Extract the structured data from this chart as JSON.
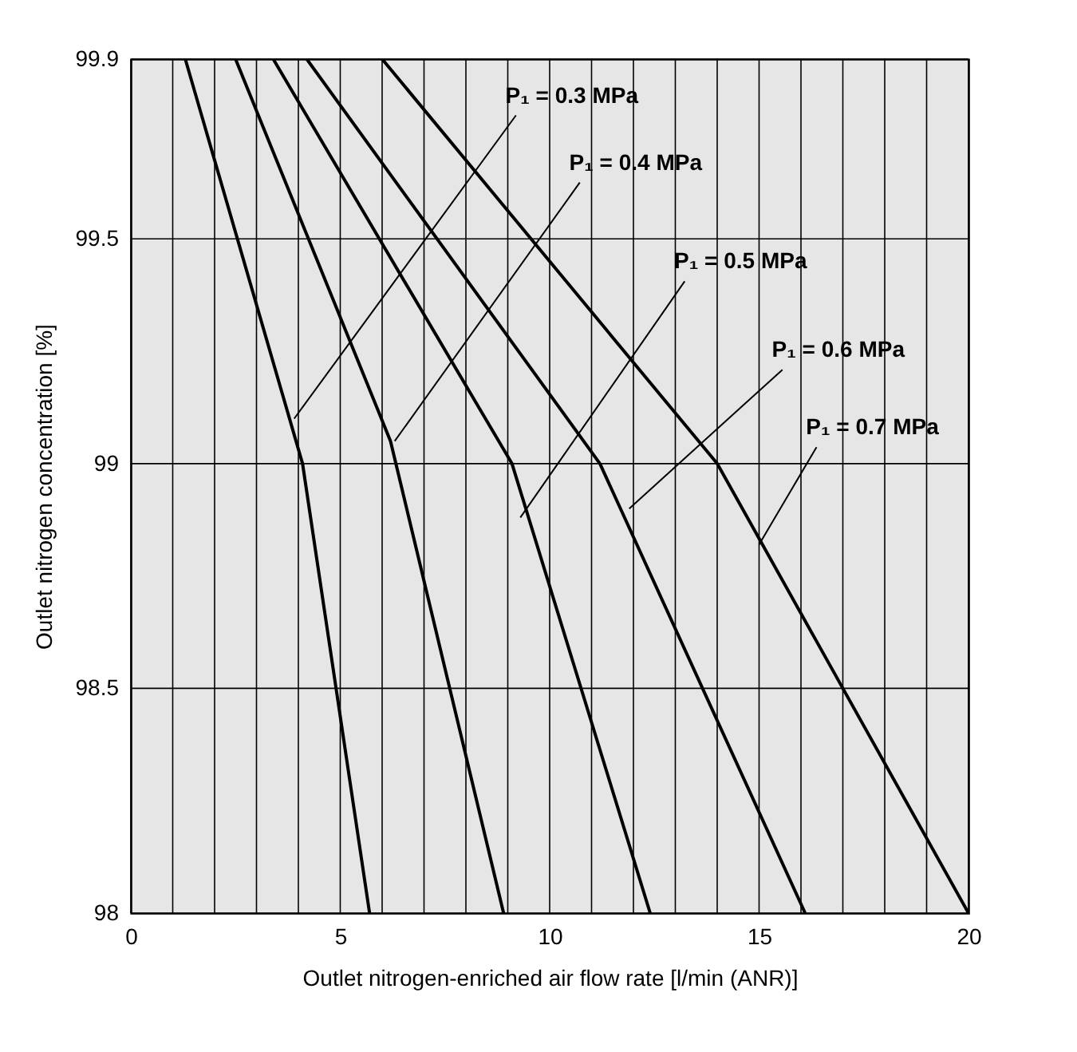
{
  "chart_data": {
    "type": "line",
    "xlabel": "Outlet nitrogen-enriched air flow rate [l/min (ANR)]",
    "ylabel": "Outlet nitrogen concentration [%]",
    "xlim": [
      0,
      20
    ],
    "ylim": [
      98,
      99.9
    ],
    "xticks": [
      0,
      {
        "value": 1,
        "label": null
      },
      {
        "value": 2,
        "label": null
      },
      {
        "value": 3,
        "label": null
      },
      {
        "value": 4,
        "label": null
      },
      5,
      {
        "value": 6,
        "label": null
      },
      {
        "value": 7,
        "label": null
      },
      {
        "value": 8,
        "label": null
      },
      {
        "value": 9,
        "label": null
      },
      10,
      {
        "value": 11,
        "label": null
      },
      {
        "value": 12,
        "label": null
      },
      {
        "value": 13,
        "label": null
      },
      {
        "value": 14,
        "label": null
      },
      15,
      {
        "value": 16,
        "label": null
      },
      {
        "value": 17,
        "label": null
      },
      {
        "value": 18,
        "label": null
      },
      {
        "value": 19,
        "label": null
      },
      20
    ],
    "yticks": [
      98,
      98.5,
      99,
      99.5,
      99.9
    ],
    "grid": true,
    "marker": "none",
    "line_style": "solid",
    "series": [
      {
        "color": "#000000",
        "x": [
          1.3,
          4.1,
          5.7
        ],
        "values": [
          99.9,
          99,
          98
        ]
      },
      {
        "color": "#000000",
        "x": [
          2.5,
          6.2,
          8.9
        ],
        "values": [
          99.9,
          99.05,
          98
        ]
      },
      {
        "color": "#000000",
        "x": [
          3.4,
          9.1,
          12.4
        ],
        "values": [
          99.9,
          99,
          98
        ]
      },
      {
        "color": "#000000",
        "x": [
          4.2,
          11.2,
          16.1
        ],
        "values": [
          99.9,
          99,
          98
        ]
      },
      {
        "color": "#000000",
        "x": [
          6,
          14,
          20
        ],
        "values": [
          99.9,
          99,
          98
        ]
      }
    ],
    "annotations": [
      {
        "text": "P₁ = 0.3 MPa",
        "x": 3.9,
        "y": 99.1
      },
      {
        "text": "P₁ = 0.4 MPa",
        "x": 6.3,
        "y": 99.05
      },
      {
        "text": "P₁ = 0.5 MPa",
        "x": 9.3,
        "y": 98.88
      },
      {
        "text": "P₁ = 0.6 MPa",
        "x": 11.9,
        "y": 98.9
      },
      {
        "text": "P₁ = 0.7 MPa",
        "x": 15.0,
        "y": 98.82
      }
    ]
  }
}
